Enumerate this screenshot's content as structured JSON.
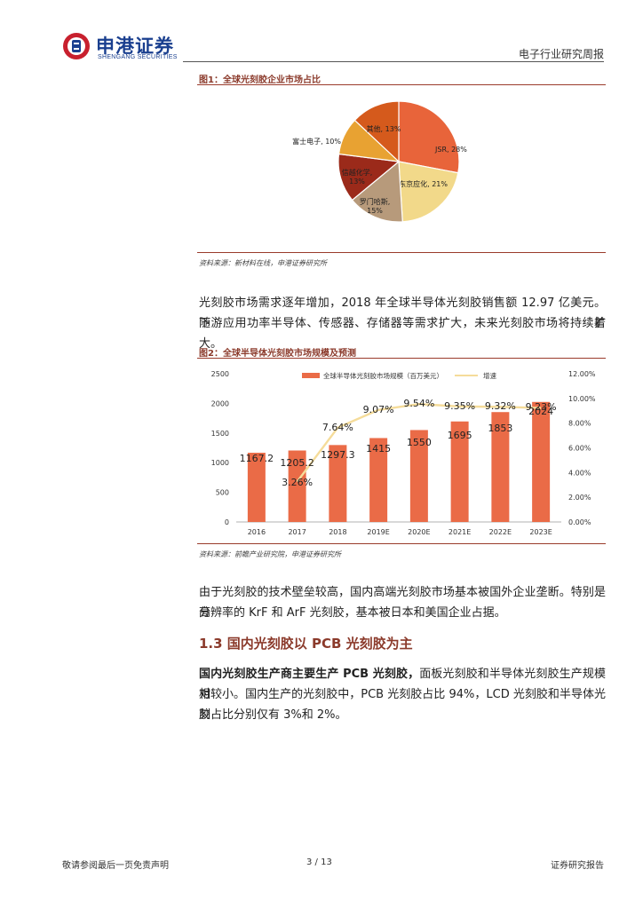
{
  "header": {
    "brand_cn": "申港证券",
    "brand_en": "SHENGANG SECURITIES",
    "report_type": "电子行业研究周报"
  },
  "figure1": {
    "title": "图1：全球光刻胶企业市场占比",
    "source": "资料来源：新材料在线，申港证券研究所",
    "chart_data": {
      "type": "pie",
      "slices": [
        {
          "label": "JSR, 28%",
          "value": 28,
          "color": "#e8643a"
        },
        {
          "label": "东京应化, 21%",
          "value": 21,
          "color": "#f2d98a"
        },
        {
          "label": "罗门哈斯,\n15%",
          "value": 15,
          "color": "#b79a7b"
        },
        {
          "label": "信越化学,\n13%",
          "value": 13,
          "color": "#9b2a1a"
        },
        {
          "label": "富士电子, 10%",
          "value": 10,
          "color": "#e8a232"
        },
        {
          "label": "其他, 13%",
          "value": 13,
          "color": "#d55a1c"
        }
      ]
    }
  },
  "para1": [
    "光刻胶市场需求逐年增加，2018 年全球半导体光刻胶销售额 12.97 亿美元。随着",
    "下游应用功率半导体、传感器、存储器等需求扩大，未来光刻胶市场将持续扩大。"
  ],
  "figure2": {
    "title": "图2：全球半导体光刻胶市场规模及预测",
    "source": "资料来源：前瞻产业研究院，申港证券研究所",
    "chart_data": {
      "type": "bar",
      "categories": [
        "2016",
        "2017",
        "2018",
        "2019E",
        "2020E",
        "2021E",
        "2022E",
        "2023E"
      ],
      "series": [
        {
          "name": "全球半导体光刻胶市场规模（百万美元）",
          "values": [
            1167.2,
            1205.2,
            1297.3,
            1415,
            1550,
            1695,
            1853,
            2024
          ],
          "color": "#ea6b47",
          "axis": "left"
        },
        {
          "name": "增速",
          "values": [
            null,
            3.26,
            7.64,
            9.07,
            9.54,
            9.35,
            9.32,
            9.23
          ],
          "color": "#f5dc9a",
          "axis": "right"
        }
      ],
      "bar_labels": [
        "1167.2",
        "1205.2",
        "1297.3",
        "1415",
        "1550",
        "1695",
        "1853",
        "2024"
      ],
      "line_labels": [
        "",
        "3.26%",
        "7.64%",
        "9.07%",
        "9.54%",
        "9.35%",
        "9.32%",
        "9.23%"
      ],
      "y_left": {
        "min": 0,
        "max": 2500,
        "ticks": [
          "0",
          "500",
          "1000",
          "1500",
          "2000",
          "2500"
        ]
      },
      "y_right": {
        "min": 0,
        "max": 12,
        "ticks": [
          "0.00%",
          "2.00%",
          "4.00%",
          "6.00%",
          "8.00%",
          "10.00%",
          "12.00%"
        ]
      },
      "legend_position": "top"
    }
  },
  "para2": [
    "由于光刻胶的技术壁垒较高，国内高端光刻胶市场基本被国外企业垄断。特别是高",
    "分辨率的 KrF 和 ArF 光刻胶，基本被日本和美国企业占据。"
  ],
  "section_title": "1.3 国内光刻胶以 PCB 光刻胶为主",
  "para3": {
    "bold": "国内光刻胶生产商主要生产 PCB 光刻胶，",
    "rest1": "面板光刻胶和半导体光刻胶生产规模相",
    "line2": "对较小。国内生产的光刻胶中，PCB 光刻胶占比 94%，LCD 光刻胶和半导体光刻",
    "line3": "胶占比分别仅有 3%和 2%。"
  },
  "footer": {
    "left": "敬请参阅最后一页免责声明",
    "page": "3 / 13",
    "right": "证券研究报告"
  }
}
